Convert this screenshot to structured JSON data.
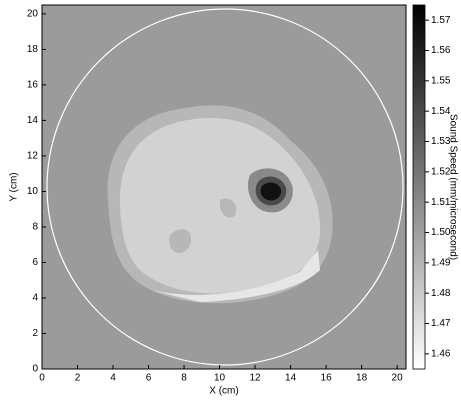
{
  "chart_data": {
    "type": "heatmap",
    "x_label": "X (cm)",
    "y_label": "Y (cm)",
    "colorbar_label": "Sound Speed (mm/microsecond)",
    "xlim": [
      0,
      20.5
    ],
    "ylim": [
      0,
      20.5
    ],
    "xticks": [
      0,
      2,
      4,
      6,
      8,
      10,
      12,
      14,
      16,
      18,
      20
    ],
    "yticks": [
      0,
      2,
      4,
      6,
      8,
      10,
      12,
      14,
      16,
      18,
      20
    ],
    "clim": [
      1.455,
      1.575
    ],
    "cticks": [
      1.46,
      1.47,
      1.48,
      1.49,
      {
        "value": 1.5,
        "label": "1.50"
      },
      1.51,
      1.52,
      1.53,
      1.54,
      1.55,
      1.56,
      1.57
    ]
  }
}
